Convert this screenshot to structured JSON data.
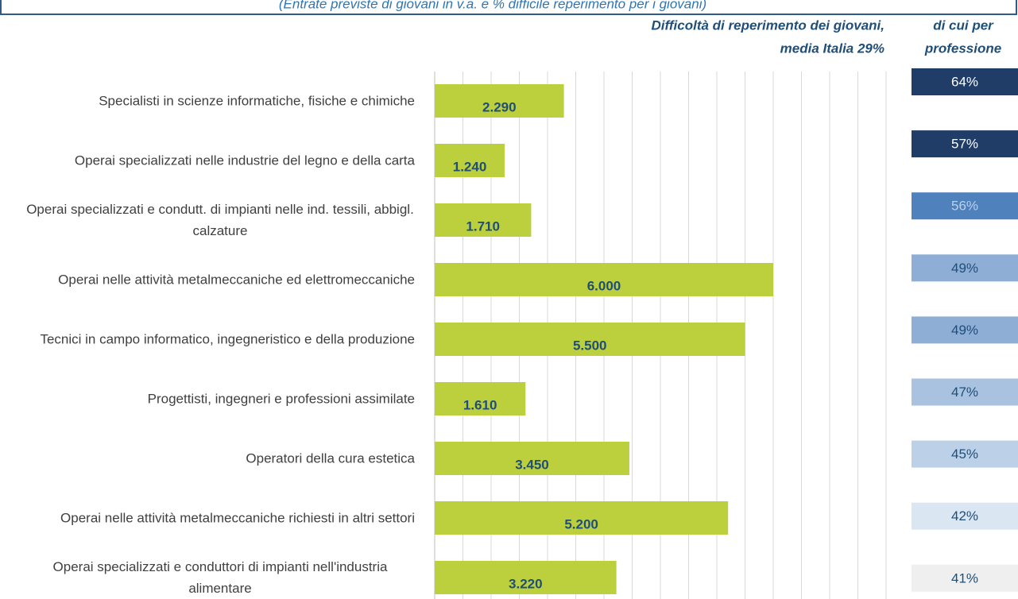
{
  "chart_data": {
    "type": "bar",
    "subtitle": "(Entrate previste di giovani in v.a. e % difficile reperimento per i giovani)",
    "header_left": [
      "Difficoltà di reperimento dei giovani,",
      "media Italia 29%"
    ],
    "header_right": [
      "di cui per",
      "professione"
    ],
    "categories": [
      "Specialisti in scienze informatiche, fisiche e chimiche",
      "Operai specializzati nelle industrie del legno e della carta",
      "Operai specializzati e condutt. di impianti nelle ind. tessili, abbigl. calzature",
      "Operai nelle attività metalmeccaniche ed elettromeccaniche",
      "Tecnici in campo informatico, ingegneristico e della produzione",
      "Progettisti, ingegneri e professioni assimilate",
      "Operatori della cura estetica",
      "Operai nelle attività metalmeccaniche richiesti in altri settori",
      "Operai specializzati e conduttori di impianti nell'industria alimentare"
    ],
    "values": [
      2290,
      1240,
      1710,
      6000,
      5500,
      1610,
      3450,
      5200,
      3220
    ],
    "value_labels": [
      "2.290",
      "1.240",
      "1.710",
      "6.000",
      "5.500",
      "1.610",
      "3.450",
      "5.200",
      "3.220"
    ],
    "color": "#bccf3c",
    "xlim": [
      0,
      8000
    ],
    "xticks": [
      0,
      500,
      1000,
      1500,
      2000,
      2500,
      3000,
      3500,
      4000,
      4500,
      5000,
      5500,
      6000,
      6500,
      7000,
      7500,
      8000
    ],
    "grid": true,
    "difficulty": [
      64,
      57,
      56,
      49,
      49,
      47,
      45,
      42,
      41
    ],
    "difficulty_labels": [
      "64%",
      "57%",
      "56%",
      "49%",
      "49%",
      "47%",
      "45%",
      "42%",
      "41%"
    ],
    "difficulty_colors": [
      "#1f3d66",
      "#1f3d66",
      "#4f81bd",
      "#8eaed6",
      "#8eaed6",
      "#a9c2e0",
      "#bcd0e8",
      "#dbe6f3",
      "#efefef"
    ]
  }
}
